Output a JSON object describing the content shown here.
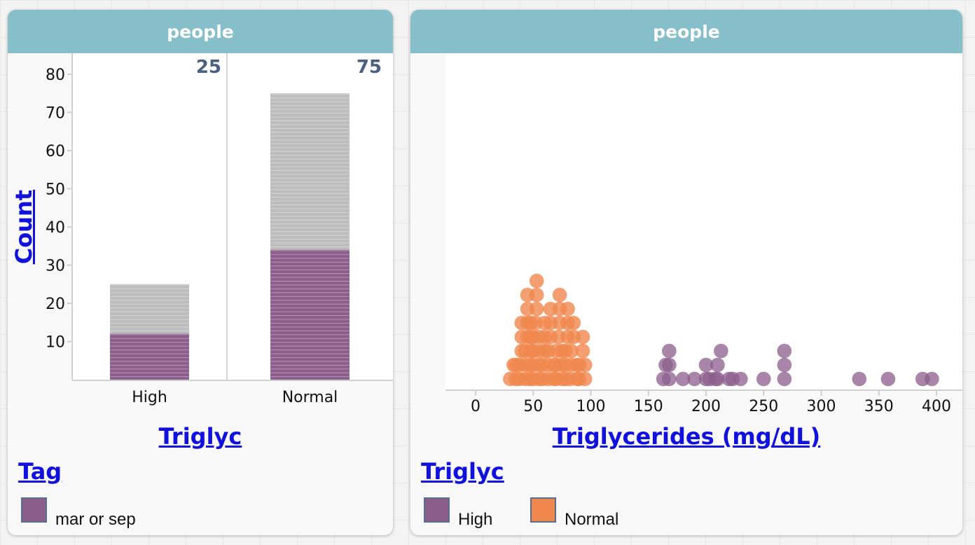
{
  "colors": {
    "high": "#8c5e8c",
    "normal": "#f0874d",
    "gray": "#bdbdbd",
    "header": "#86bfc9"
  },
  "left_card": {
    "header": "people",
    "legend_title": "Tag",
    "legend_items": [
      {
        "label": "mar or sep",
        "color": "#8c5e8c"
      }
    ]
  },
  "right_card": {
    "header": "people",
    "legend_title": "Triglyc",
    "legend_items": [
      {
        "label": "High",
        "color": "#8c5e8c"
      },
      {
        "label": "Normal",
        "color": "#f0874d"
      }
    ]
  },
  "chart_data": [
    {
      "type": "bar",
      "xlabel": "Triglyc",
      "ylabel": "Count",
      "categories": [
        "High",
        "Normal"
      ],
      "totals": [
        25,
        75
      ],
      "tagged_values": [
        12,
        34
      ],
      "tagged_series": "mar or sep",
      "ylim": [
        0,
        85
      ],
      "yticks": [
        10,
        20,
        30,
        40,
        50,
        60,
        70,
        80
      ],
      "count_labels": [
        "25",
        "75"
      ]
    },
    {
      "type": "scatter",
      "xlabel": "Triglycerides (mg/dL)",
      "xlim": [
        -25,
        410
      ],
      "xticks": [
        0,
        50,
        100,
        150,
        200,
        250,
        300,
        350,
        400
      ],
      "series": [
        {
          "name": "High",
          "values": [
            163,
            165,
            168,
            168,
            168,
            180,
            190,
            200,
            200,
            203,
            208,
            210,
            210,
            213,
            220,
            223,
            230,
            250,
            268,
            268,
            268,
            333,
            358,
            388,
            396
          ]
        },
        {
          "name": "Normal",
          "values": [
            30,
            33,
            35,
            35,
            38,
            38,
            40,
            40,
            40,
            43,
            43,
            43,
            45,
            45,
            45,
            45,
            47,
            47,
            48,
            48,
            48,
            50,
            50,
            50,
            50,
            52,
            53,
            53,
            53,
            55,
            55,
            55,
            55,
            58,
            58,
            60,
            60,
            60,
            63,
            63,
            63,
            65,
            65,
            65,
            68,
            68,
            70,
            70,
            70,
            72,
            73,
            73,
            73,
            75,
            75,
            75,
            78,
            78,
            78,
            80,
            80,
            80,
            82,
            83,
            83,
            85,
            85,
            88,
            88,
            90,
            90,
            93,
            93,
            95,
            95
          ]
        }
      ]
    }
  ]
}
